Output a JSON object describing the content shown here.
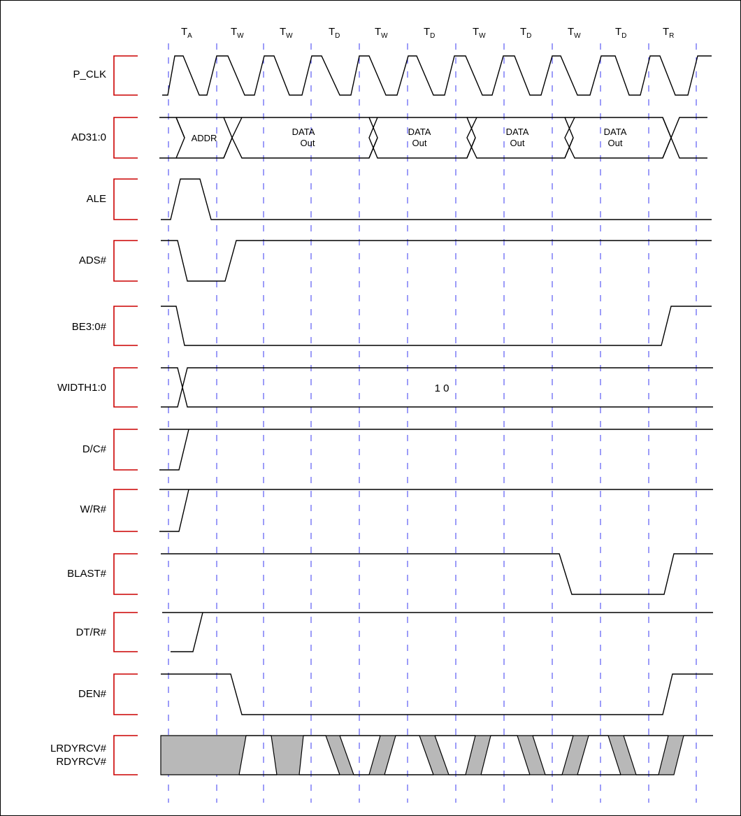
{
  "cycle_labels": [
    {
      "base": "T",
      "sub": "A"
    },
    {
      "base": "T",
      "sub": "W"
    },
    {
      "base": "T",
      "sub": "W"
    },
    {
      "base": "T",
      "sub": "D"
    },
    {
      "base": "T",
      "sub": "W"
    },
    {
      "base": "T",
      "sub": "D"
    },
    {
      "base": "T",
      "sub": "W"
    },
    {
      "base": "T",
      "sub": "D"
    },
    {
      "base": "T",
      "sub": "W"
    },
    {
      "base": "T",
      "sub": "D"
    },
    {
      "base": "T",
      "sub": "R"
    }
  ],
  "signals": [
    {
      "id": "p_clk",
      "label": "P_CLK"
    },
    {
      "id": "ad31",
      "label": "AD31:0"
    },
    {
      "id": "ale",
      "label": "ALE"
    },
    {
      "id": "ads",
      "label": "ADS#"
    },
    {
      "id": "be30",
      "label": "BE3:0#"
    },
    {
      "id": "width",
      "label": "WIDTH1:0"
    },
    {
      "id": "dc",
      "label": "D/C#"
    },
    {
      "id": "wr",
      "label": "W/R#"
    },
    {
      "id": "blast",
      "label": "BLAST#"
    },
    {
      "id": "dtr",
      "label": "DT/R#"
    },
    {
      "id": "den",
      "label": "DEN#"
    },
    {
      "id": "lrdy",
      "label": "LRDYRCV#",
      "label2": "RDYRCV#"
    }
  ],
  "bus_labels": {
    "addr": "ADDR",
    "data1": "DATA",
    "data2": "Out",
    "width_value": "1 0"
  },
  "colors": {
    "bracket": "#cc0000",
    "grid": "#3a3af0",
    "shade": "#b8b8b8"
  }
}
